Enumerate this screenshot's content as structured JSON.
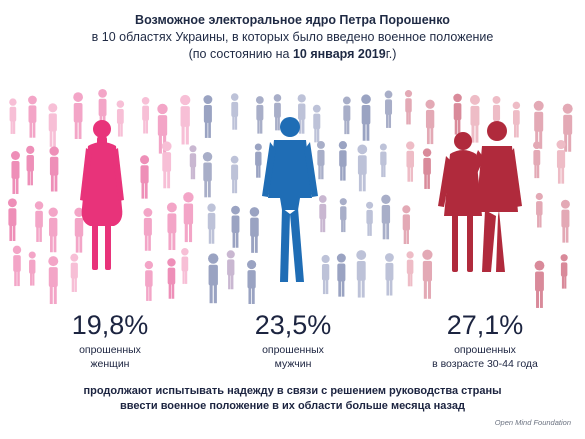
{
  "header": {
    "title": "Возможное электоральное ядро Петра Порошенко",
    "line2": "в 10 областях Украины, в которых было введено военное положение",
    "line3_prefix": "(по состоянию на ",
    "line3_date": "10 января 2019",
    "line3_suffix": "г.)"
  },
  "stats": [
    {
      "percent": "19,8%",
      "label1": "опрошенных",
      "label2": "женщин",
      "color": "#e8337a"
    },
    {
      "percent": "23,5%",
      "label1": "опрошенных",
      "label2": "мужчин",
      "color": "#1f6db5"
    },
    {
      "percent": "27,1%",
      "label1": "опрошенных",
      "label2": "в возрасте 30-44 года",
      "color": "#b02a3c"
    }
  ],
  "footer": {
    "line1": "продолжают испытывать  надежду в связи с решением руководства страны",
    "line2": "ввести военное положение в их области больше месяца назад"
  },
  "brand": "Open Mind Foundation",
  "colors": {
    "women_light": "#f3a5c7",
    "women_main": "#e8337a",
    "men_light": "#a8aec8",
    "men_main": "#1f6db5",
    "couple_light": "#e3a9b5",
    "couple_main": "#b02a3c"
  }
}
